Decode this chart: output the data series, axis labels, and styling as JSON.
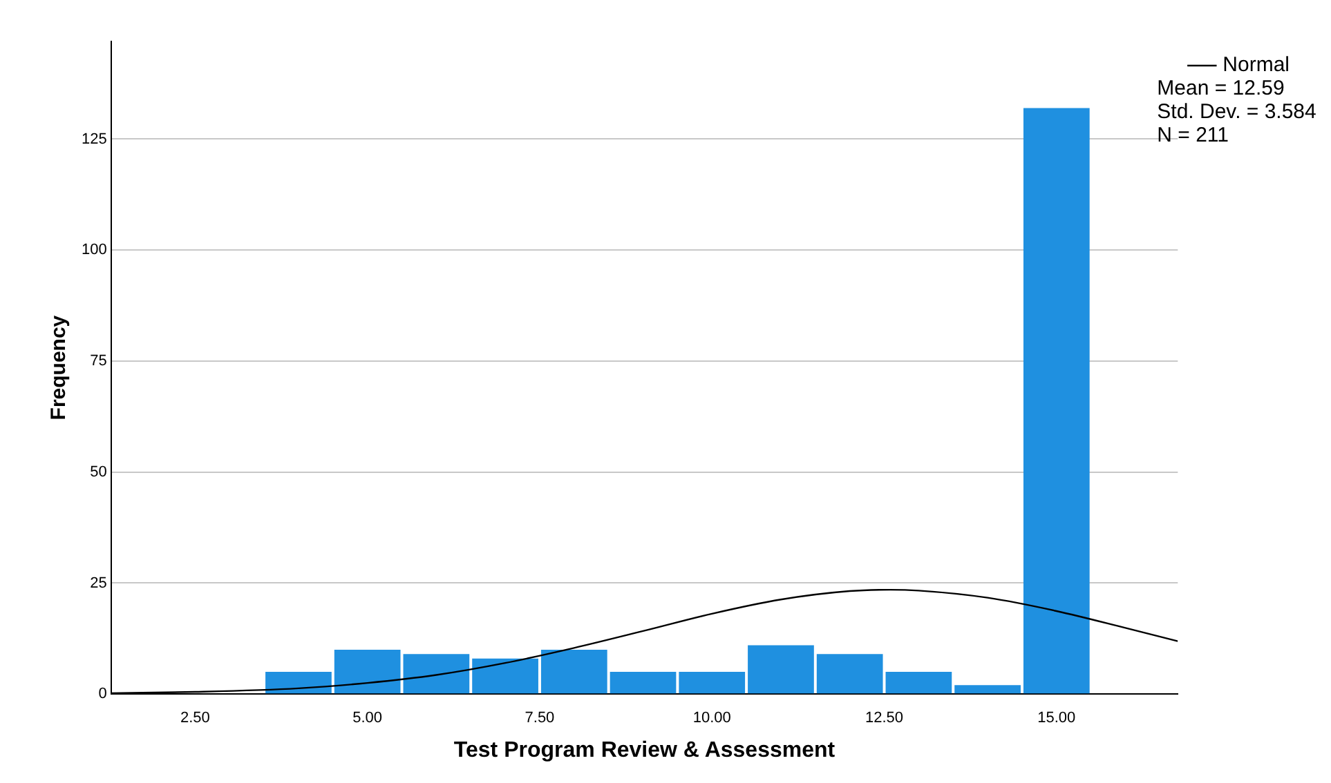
{
  "chart_data": {
    "type": "histogram",
    "xlabel": "Test Program Review & Assessment",
    "ylabel": "Frequency",
    "bins": [
      3.5,
      4.5,
      5.5,
      6.5,
      7.5,
      8.5,
      9.5,
      10.5,
      11.5,
      12.5,
      13.5,
      14.5,
      15.5
    ],
    "values": [
      5,
      10,
      9,
      8,
      10,
      5,
      5,
      11,
      9,
      5,
      2,
      132
    ],
    "color": "#1f90e0",
    "series": [
      {
        "name": "Normal",
        "type": "line",
        "color": "#000000",
        "x": [
          1.28,
          2.5,
          4,
          5,
          6,
          7,
          8,
          9,
          10,
          11,
          12,
          12.59,
          13,
          14,
          15,
          16,
          16.76
        ],
        "values": [
          0.2,
          0.5,
          1.3,
          2.5,
          4.3,
          7.0,
          10.4,
          14.2,
          18.1,
          21.3,
          23.2,
          23.5,
          23.3,
          21.7,
          18.7,
          14.9,
          11.9
        ]
      }
    ],
    "marker": "none",
    "xlim": [
      1.28,
      16.76
    ],
    "xticks": [
      {
        "value": 2.5,
        "label": "2.50"
      },
      {
        "value": 5,
        "label": "5.00"
      },
      {
        "value": 7.5,
        "label": "7.50"
      },
      {
        "value": 10,
        "label": "10.00"
      },
      {
        "value": 12.5,
        "label": "12.50"
      },
      {
        "value": 15,
        "label": "15.00"
      }
    ],
    "ylim": [
      0,
      147
    ],
    "yticks": [
      0,
      25,
      50,
      75,
      100,
      125
    ],
    "grid": "y",
    "legend": "top right",
    "annotations": [
      "Mean = 12.59",
      "Std. Dev. = 3.584",
      "N = 211"
    ]
  }
}
